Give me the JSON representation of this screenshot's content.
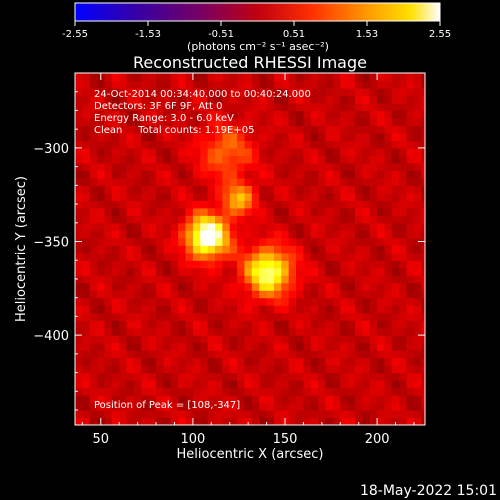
{
  "colorbar": {
    "ticks": [
      "-2.55",
      "-1.53",
      "-0.51",
      "0.51",
      "1.53",
      "2.55"
    ],
    "units": "(photons cm⁻² s⁻¹ asec⁻²)",
    "min": -2.55,
    "max": 2.55
  },
  "title": "Reconstructed RHESSI Image",
  "info": {
    "line1": "24-Oct-2014 00:34:40.000 to 00:40:24.000",
    "line2": "Detectors: 3F 6F 9F, Att 0",
    "line3": "Energy Range: 3.0 - 6.0 keV",
    "line4": "Clean     Total counts: 1.19E+05",
    "peak": "Position of Peak = [108,-347]"
  },
  "footer_date": "18-May-2022 15:01",
  "chart_data": {
    "type": "heatmap",
    "title": "Reconstructed RHESSI Image",
    "xlabel": "Heliocentric X (arcsec)",
    "ylabel": "Heliocentric Y (arcsec)",
    "xlim": [
      36,
      226
    ],
    "ylim": [
      -448,
      -260
    ],
    "xticks": [
      50,
      100,
      150,
      200
    ],
    "yticks": [
      -300,
      -350,
      -400
    ],
    "colormap": "hot",
    "sources": [
      {
        "x": 108,
        "y": -347,
        "sigma": 8,
        "amp": 1.0
      },
      {
        "x": 141,
        "y": -366,
        "sigma": 9,
        "amp": 0.8
      },
      {
        "x": 125,
        "y": -327,
        "sigma": 6,
        "amp": 0.5
      },
      {
        "x": 118,
        "y": -302,
        "sigma": 10,
        "amp": 0.35
      }
    ],
    "peak": [
      108,
      -347
    ]
  }
}
